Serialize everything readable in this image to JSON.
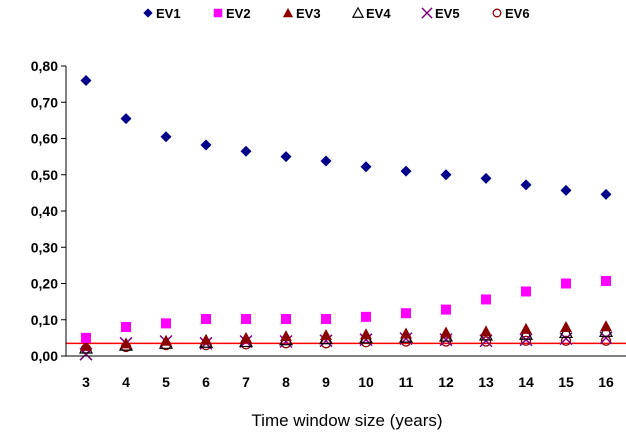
{
  "chart_data": {
    "type": "scatter",
    "xlabel": "Time window size (years)",
    "ylabel": "",
    "x": [
      3,
      4,
      5,
      6,
      7,
      8,
      9,
      10,
      11,
      12,
      13,
      14,
      15,
      16
    ],
    "x_tick_labels": [
      "3",
      "4",
      "5",
      "6",
      "7",
      "8",
      "9",
      "10",
      "11",
      "12",
      "13",
      "14",
      "15",
      "16"
    ],
    "ylim": [
      0,
      0.8
    ],
    "y_ticks": [
      0,
      0.1,
      0.2,
      0.3,
      0.4,
      0.5,
      0.6,
      0.7,
      0.8
    ],
    "y_tick_labels": [
      "0,00",
      "0,10",
      "0,20",
      "0,30",
      "0,40",
      "0,50",
      "0,60",
      "0,70",
      "0,80"
    ],
    "legend_position": "top",
    "grid": false,
    "reference_line": {
      "y": 0.035,
      "color": "#ff0000"
    },
    "series": [
      {
        "name": "EV1",
        "marker": "diamond",
        "color": "#00008b",
        "values": [
          0.76,
          0.655,
          0.605,
          0.582,
          0.565,
          0.55,
          0.538,
          0.522,
          0.51,
          0.5,
          0.49,
          0.472,
          0.457,
          0.446
        ]
      },
      {
        "name": "EV2",
        "marker": "square",
        "color": "#ff00ff",
        "values": [
          0.05,
          0.08,
          0.09,
          0.102,
          0.102,
          0.102,
          0.102,
          0.108,
          0.118,
          0.128,
          0.156,
          0.178,
          0.2,
          0.207
        ]
      },
      {
        "name": "EV3",
        "marker": "triangle-filled",
        "color": "#8b0000",
        "values": [
          0.028,
          0.035,
          0.042,
          0.045,
          0.05,
          0.055,
          0.058,
          0.06,
          0.062,
          0.065,
          0.068,
          0.075,
          0.08,
          0.082
        ]
      },
      {
        "name": "EV4",
        "marker": "triangle-open",
        "color": "#000000",
        "values": [
          0.022,
          0.03,
          0.035,
          0.038,
          0.04,
          0.045,
          0.048,
          0.05,
          0.052,
          0.055,
          0.058,
          0.06,
          0.065,
          0.068
        ]
      },
      {
        "name": "EV5",
        "marker": "x",
        "color": "#800080",
        "values": [
          0.005,
          0.035,
          0.04,
          0.035,
          0.04,
          0.04,
          0.042,
          0.045,
          0.048,
          0.045,
          0.042,
          0.045,
          0.048,
          0.05
        ]
      },
      {
        "name": "EV6",
        "marker": "circle-open",
        "color": "#8b0000",
        "values": [
          0.02,
          0.025,
          0.03,
          0.03,
          0.032,
          0.035,
          0.035,
          0.038,
          0.04,
          0.04,
          0.04,
          0.042,
          0.042,
          0.042
        ]
      }
    ]
  }
}
